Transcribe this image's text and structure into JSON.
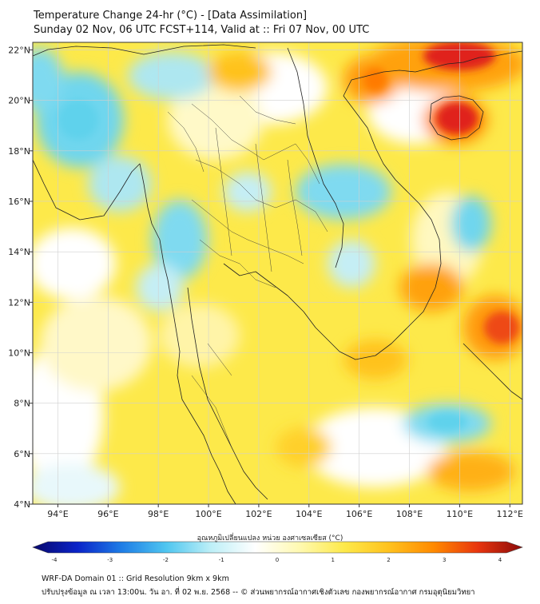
{
  "header": {
    "title_line1": "Temperature Change 24-hr (°C) - [Data Assimilation]",
    "title_line2": "Sunday 02 Nov, 06 UTC FCST+114, Valid at :: Fri 07 Nov, 00 UTC"
  },
  "map": {
    "lon_labels": [
      "94°E",
      "96°E",
      "98°E",
      "100°E",
      "102°E",
      "104°E",
      "106°E",
      "108°E",
      "110°E",
      "112°E"
    ],
    "lat_labels": [
      "22°N",
      "20°N",
      "18°N",
      "16°N",
      "14°N",
      "12°N",
      "10°N",
      "8°N",
      "6°N",
      "4°N"
    ],
    "lon_range": [
      93,
      112.5
    ],
    "lat_range": [
      4,
      22.3
    ],
    "field_colors": {
      "warm_strong": "#e0201a",
      "warm": "#ffa10a",
      "mild_warm": "#fde94a",
      "neutral": "#ffffff",
      "cool": "#aee7f0",
      "cold": "#5fd2ec"
    }
  },
  "colorbar": {
    "title": "อุณหภูมิเปลี่ยนแปลง หน่วย องศาเซลเซียส (°C)",
    "ticks": [
      "-4",
      "-3",
      "-2",
      "-1",
      "0",
      "1",
      "2",
      "3",
      "4"
    ],
    "range": [
      -4,
      4
    ],
    "colors": [
      "#08086b",
      "#0a23c8",
      "#1e7de6",
      "#4fc6f0",
      "#bdeff7",
      "#ffffff",
      "#fff9b0",
      "#fde94a",
      "#ffc21e",
      "#ff8a00",
      "#e8350e",
      "#8a0a0a"
    ]
  },
  "footer": {
    "line1": "WRF-DA Domain 01 :: Grid Resolution 9km x 9km",
    "line2": "ปรับปรุงข้อมูล ณ เวลา 13:00น. วัน อา. ที่ 02 พ.ย. 2568 -- © ส่วนพยากรณ์อากาศเชิงตัวเลข กองพยากรณ์อากาศ กรมอุตุนิยมวิทยา"
  }
}
